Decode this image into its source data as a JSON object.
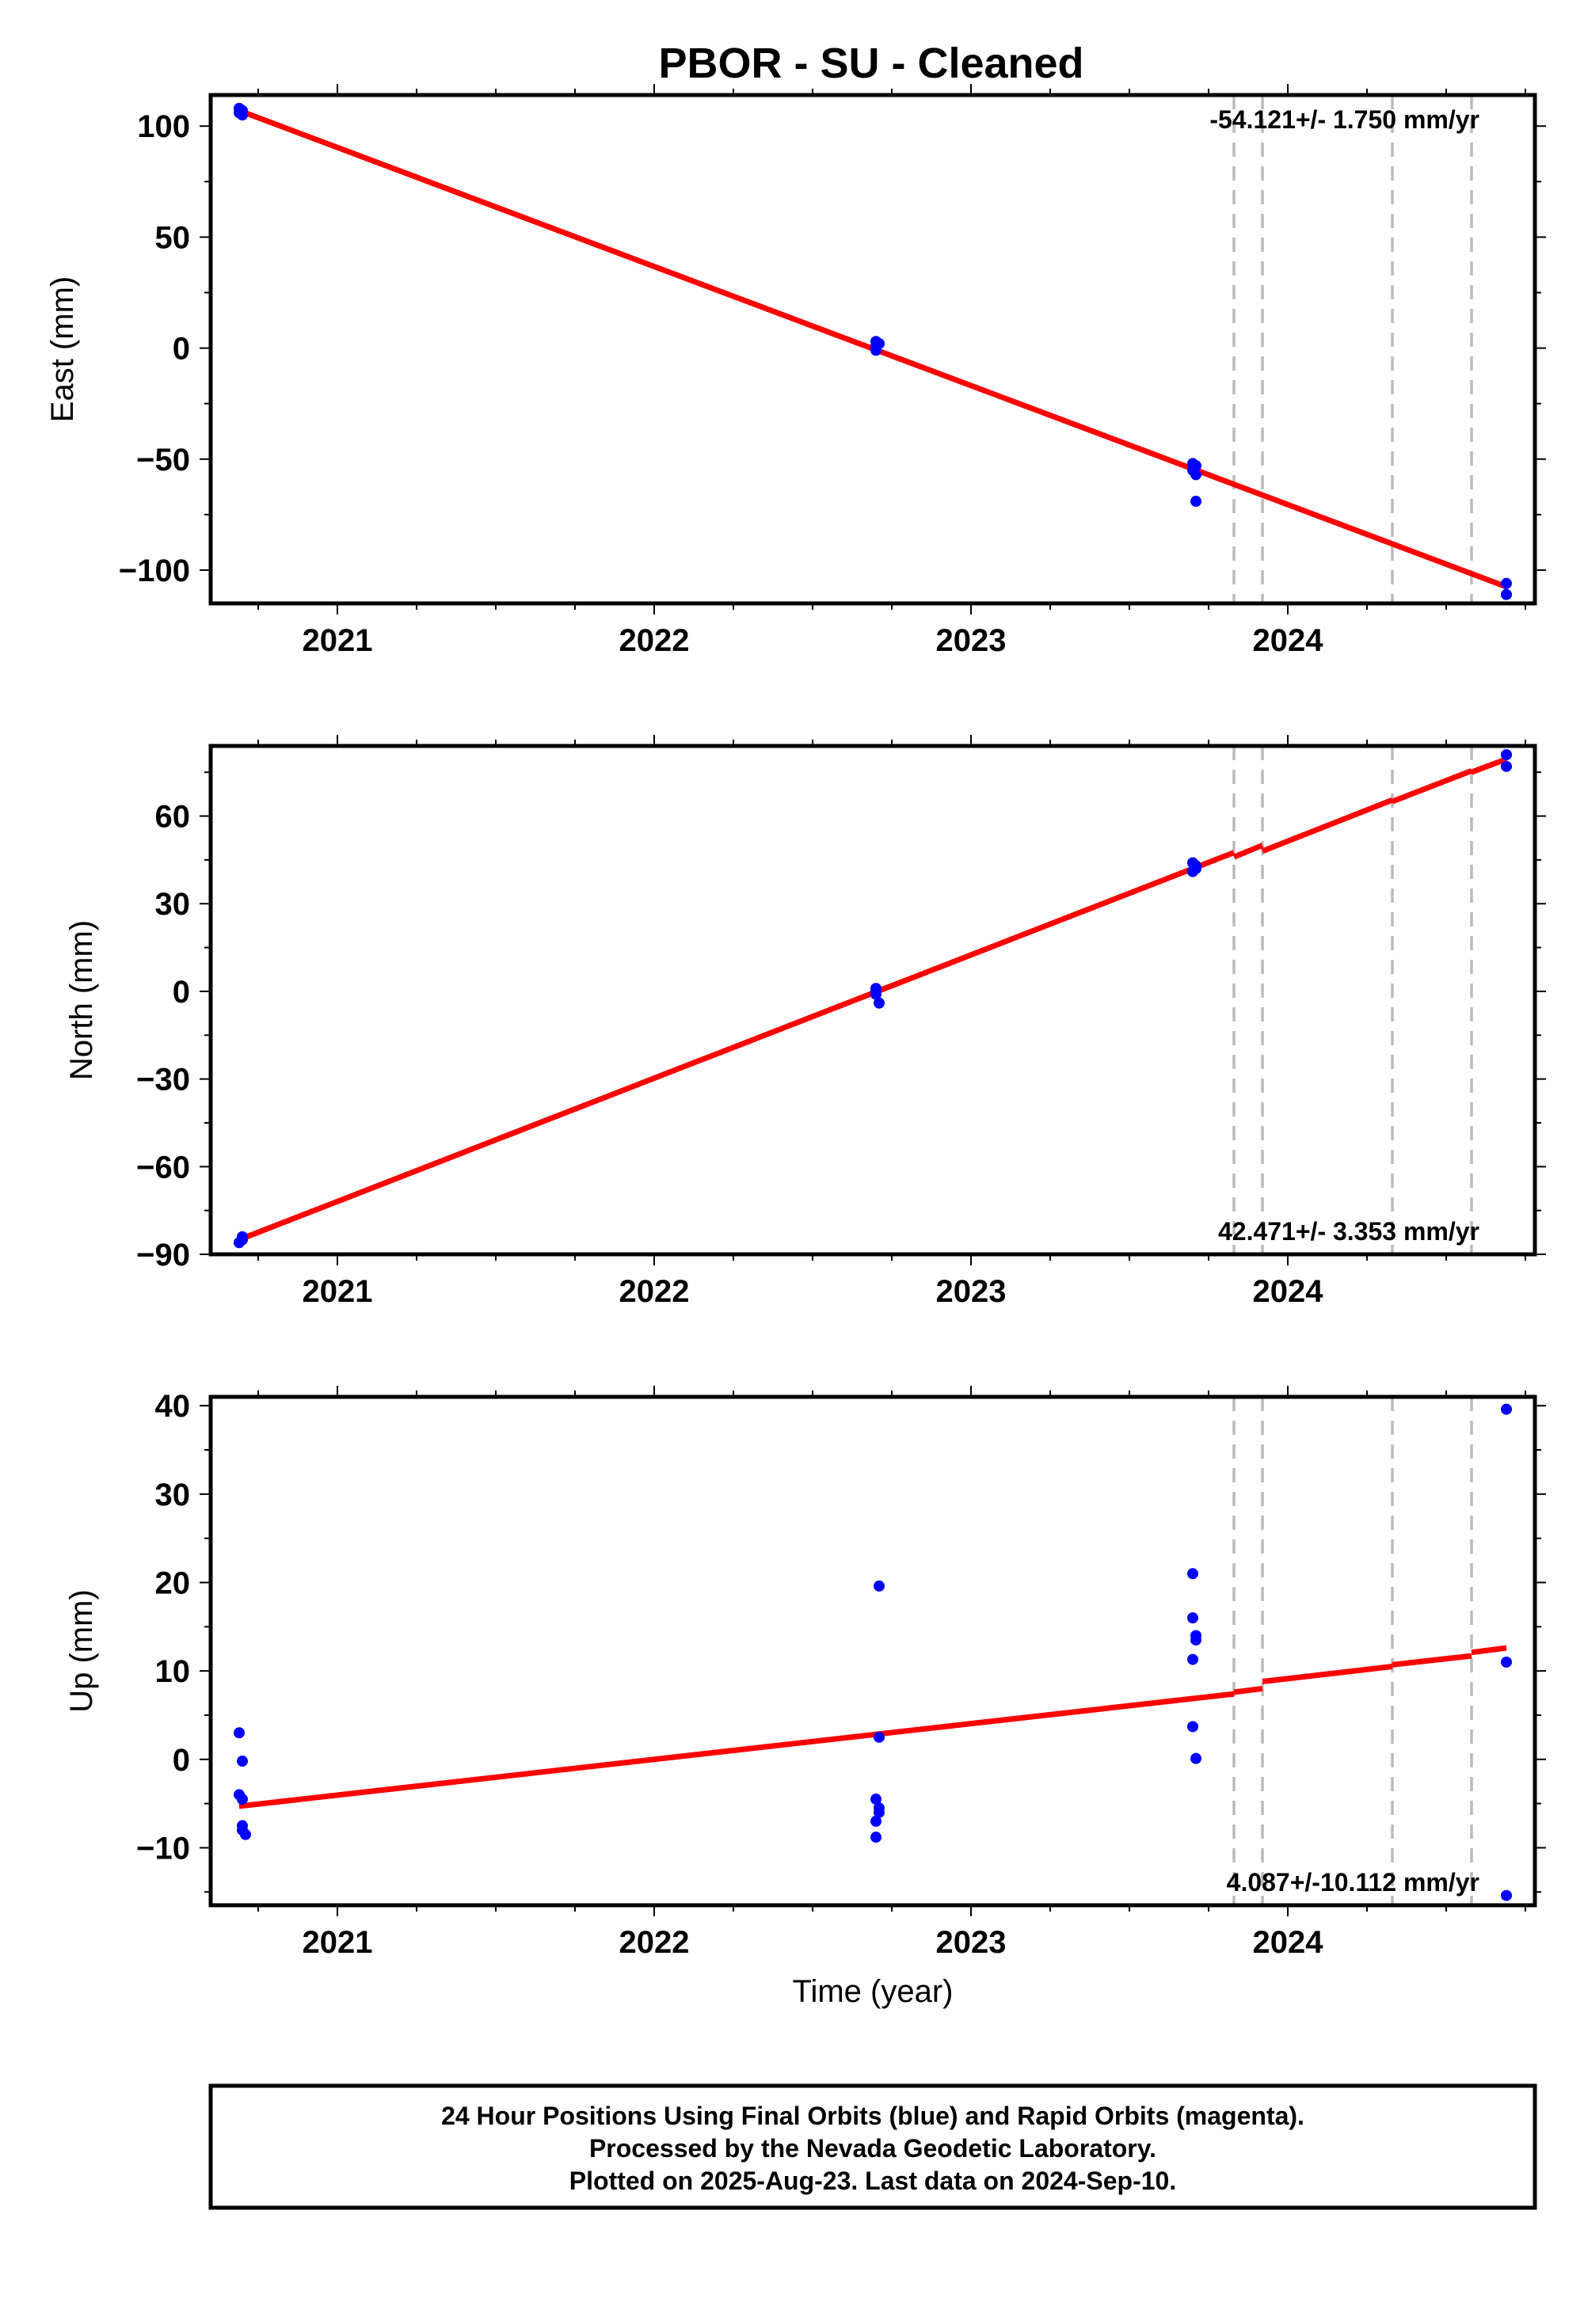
{
  "title": "PBOR  - SU - Cleaned",
  "chart_data": [
    {
      "type": "scatter",
      "name": "east",
      "ylabel": "East (mm)",
      "xlabel": "",
      "xlim": [
        2020.6,
        2024.78
      ],
      "ylim": [
        -115,
        114
      ],
      "yticks": [
        100,
        50,
        0,
        -50,
        -100
      ],
      "ytick_labels": [
        "100",
        "50",
        "0",
        "−50",
        "−100"
      ],
      "xticks": [
        2021,
        2022,
        2023,
        2024
      ],
      "xtick_labels": [
        "2021",
        "2022",
        "2023",
        "2024"
      ],
      "rate_label": "-54.121+/- 1.750 mm/yr",
      "rate_position": "top-right",
      "offsets": [
        2023.83,
        2023.92,
        2024.33,
        2024.58
      ],
      "points": {
        "x": [
          2020.69,
          2020.69,
          2020.7,
          2020.7,
          2022.7,
          2022.7,
          2022.7,
          2022.71,
          2023.7,
          2023.7,
          2023.71,
          2023.71,
          2023.71,
          2024.69,
          2024.69
        ],
        "y": [
          108,
          106,
          107,
          105,
          3,
          1,
          -1,
          2,
          -52,
          -55,
          -57,
          -53,
          -69,
          -106,
          -111
        ]
      },
      "fit": {
        "x": [
          2020.69,
          2024.69
        ],
        "y": [
          107,
          -107.5
        ]
      }
    },
    {
      "type": "scatter",
      "name": "north",
      "ylabel": "North (mm)",
      "xlabel": "",
      "xlim": [
        2020.6,
        2024.78
      ],
      "ylim": [
        -90,
        84
      ],
      "yticks": [
        60,
        30,
        0,
        -30,
        -60,
        -90
      ],
      "ytick_labels": [
        "60",
        "30",
        "0",
        "−30",
        "−60",
        "−90"
      ],
      "xticks": [
        2021,
        2022,
        2023,
        2024
      ],
      "xtick_labels": [
        "2021",
        "2022",
        "2023",
        "2024"
      ],
      "rate_label": "42.471+/- 3.353 mm/yr",
      "rate_position": "bottom-right",
      "offsets": [
        2023.83,
        2023.92,
        2024.33,
        2024.58
      ],
      "points": {
        "x": [
          2020.69,
          2020.7,
          2020.7,
          2022.7,
          2022.7,
          2022.71,
          2022.7,
          2023.7,
          2023.7,
          2023.71,
          2023.71,
          2024.69,
          2024.69
        ],
        "y": [
          -86,
          -84,
          -85,
          0,
          1,
          -4,
          -1,
          44,
          41,
          43,
          42,
          81,
          77
        ]
      },
      "fit": {
        "segments": [
          {
            "x": [
              2020.69,
              2023.83
            ],
            "y": [
              -85,
              47.5
            ]
          },
          {
            "x": [
              2023.83,
              2023.92
            ],
            "y": [
              46,
              50
            ]
          },
          {
            "x": [
              2023.92,
              2024.33
            ],
            "y": [
              48,
              65.5
            ]
          },
          {
            "x": [
              2024.33,
              2024.58
            ],
            "y": [
              65,
              75.5
            ]
          },
          {
            "x": [
              2024.58,
              2024.69
            ],
            "y": [
              75,
              79.5
            ]
          }
        ]
      }
    },
    {
      "type": "scatter",
      "name": "up",
      "ylabel": "Up (mm)",
      "xlabel": "Time (year)",
      "xlim": [
        2020.6,
        2024.78
      ],
      "ylim": [
        -16.5,
        41
      ],
      "yticks": [
        40,
        30,
        20,
        10,
        0,
        -10
      ],
      "ytick_labels": [
        "40",
        "30",
        "20",
        "10",
        "0",
        "−10"
      ],
      "xticks": [
        2021,
        2022,
        2023,
        2024
      ],
      "xtick_labels": [
        "2021",
        "2022",
        "2023",
        "2024"
      ],
      "rate_label": "4.087+/-10.112 mm/yr",
      "rate_position": "bottom-right",
      "offsets": [
        2023.83,
        2023.92,
        2024.33,
        2024.58
      ],
      "points": {
        "x": [
          2020.69,
          2020.7,
          2020.69,
          2020.7,
          2020.7,
          2020.71,
          2020.7,
          2022.71,
          2022.71,
          2022.7,
          2022.71,
          2022.7,
          2022.7,
          2022.71,
          2023.7,
          2023.7,
          2023.71,
          2023.71,
          2023.7,
          2023.7,
          2023.71,
          2024.69,
          2024.69,
          2024.69
        ],
        "y": [
          3,
          -0.2,
          -4,
          -4.5,
          -7.5,
          -8.5,
          -8,
          19.6,
          2.5,
          -4.5,
          -6,
          -7,
          -8.8,
          -5.5,
          21,
          16,
          14,
          13.5,
          11.3,
          3.7,
          0.1,
          39.6,
          11,
          -15.4
        ]
      },
      "fit": {
        "segments": [
          {
            "x": [
              2020.69,
              2023.83
            ],
            "y": [
              -5.3,
              7.4
            ]
          },
          {
            "x": [
              2023.83,
              2023.92
            ],
            "y": [
              7.6,
              8.0
            ]
          },
          {
            "x": [
              2023.92,
              2024.33
            ],
            "y": [
              8.8,
              10.5
            ]
          },
          {
            "x": [
              2024.33,
              2024.58
            ],
            "y": [
              10.7,
              11.7
            ]
          },
          {
            "x": [
              2024.58,
              2024.69
            ],
            "y": [
              12.1,
              12.6
            ]
          }
        ]
      }
    }
  ],
  "footer": {
    "line1": "24 Hour Positions Using Final Orbits (blue) and Rapid Orbits (magenta).",
    "line2": "Processed by the Nevada Geodetic Laboratory.",
    "line3": "Plotted on 2025-Aug-23. Last data on 2024-Sep-10."
  },
  "colors": {
    "points": "#0000ff",
    "fit": "#ff0000",
    "offset_lines": "#bbbbbb",
    "frame": "#000000"
  }
}
